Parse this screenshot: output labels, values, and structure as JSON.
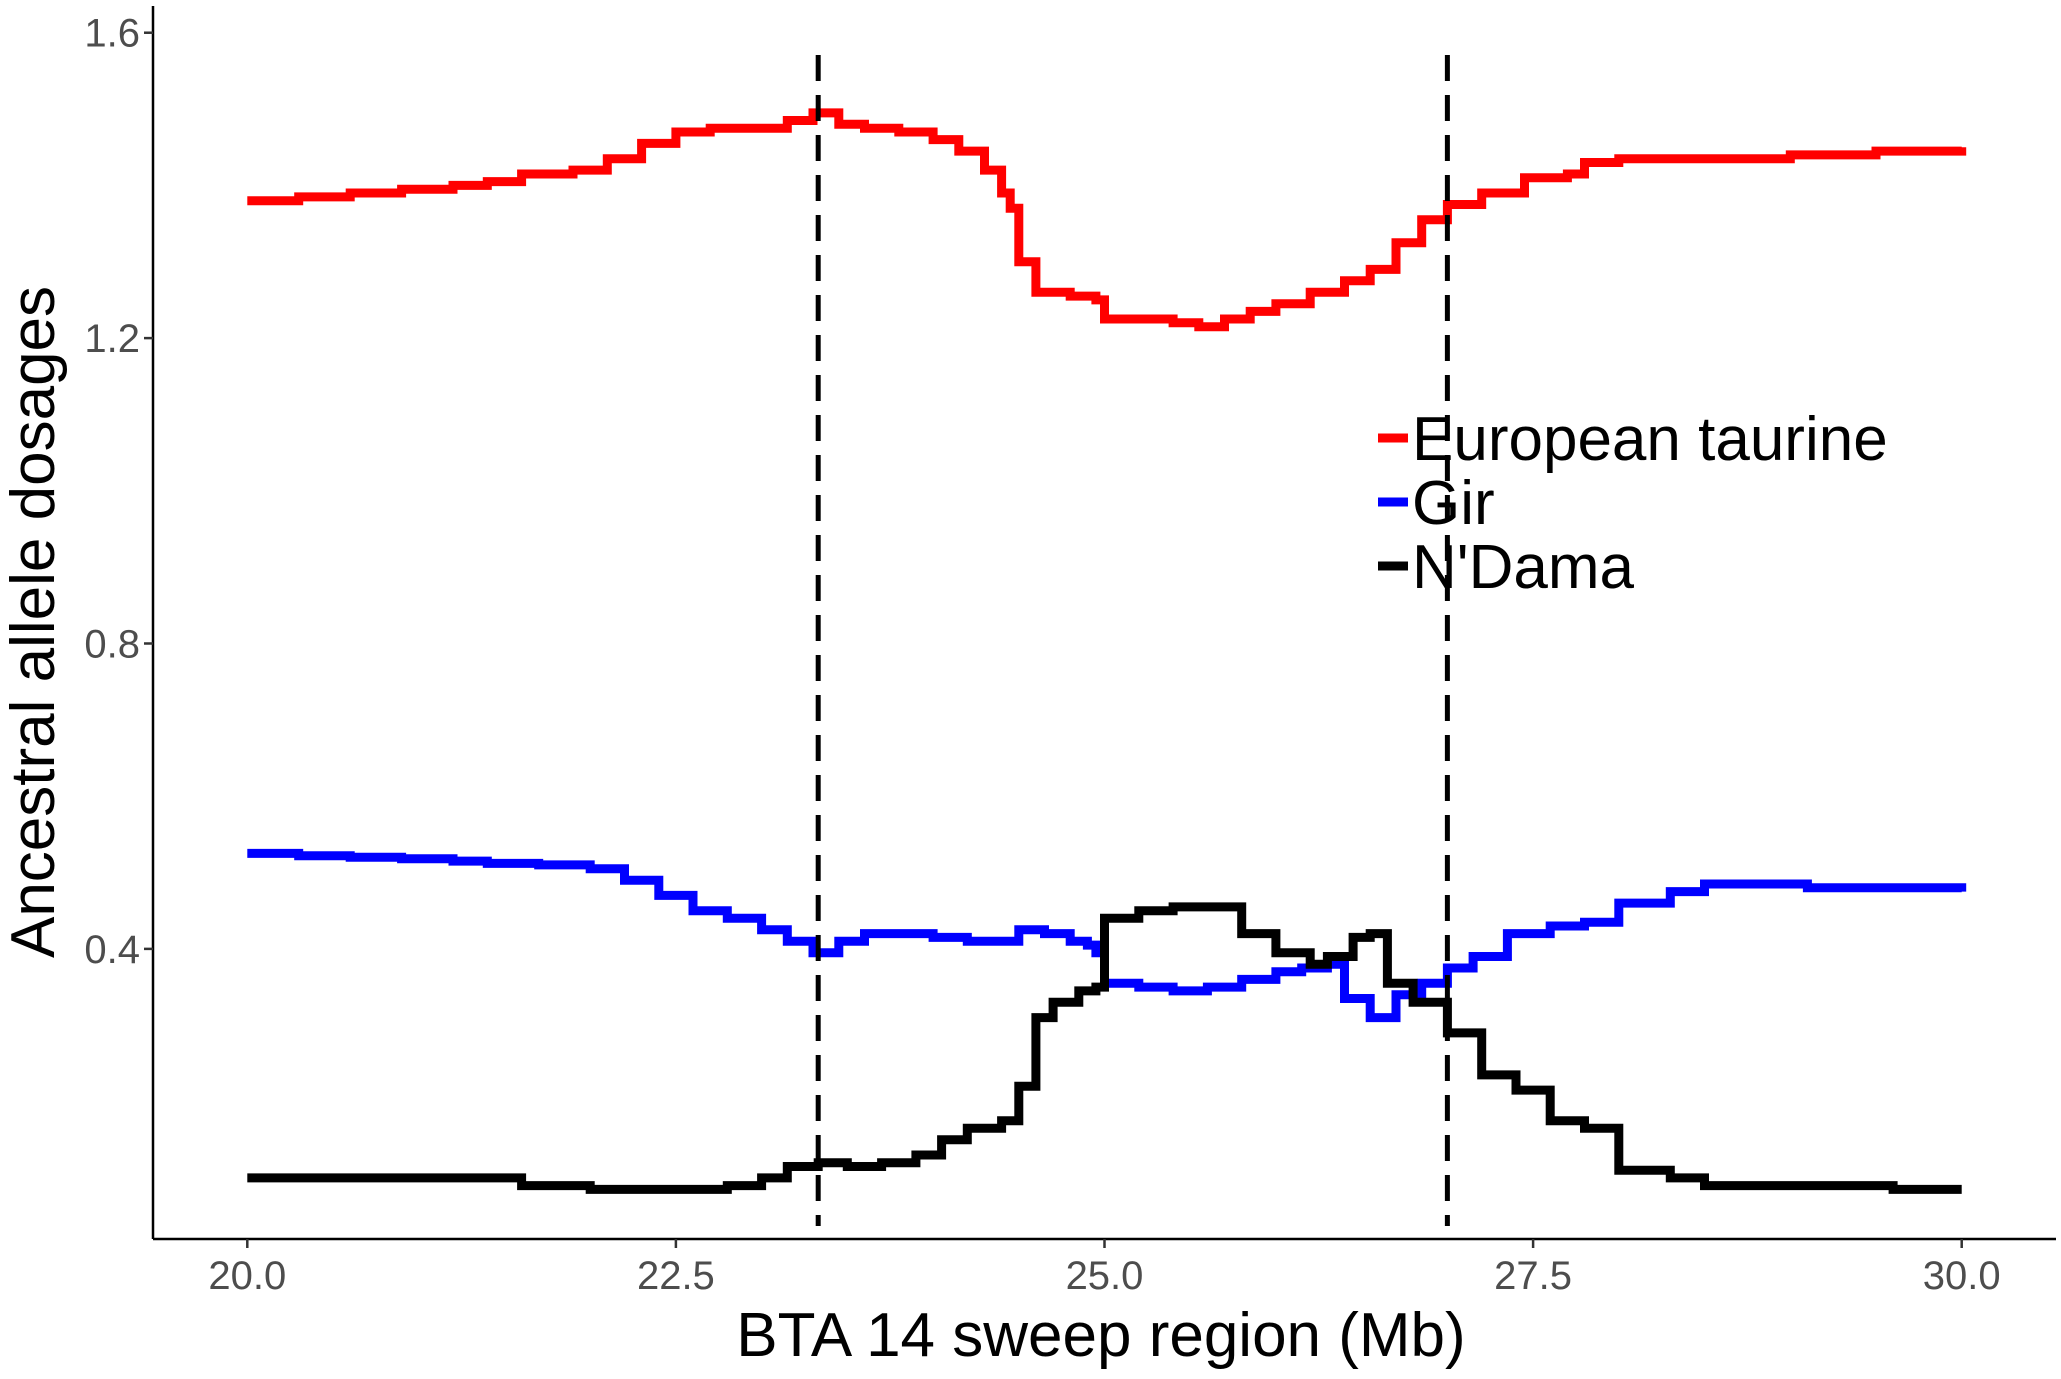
{
  "chart_data": {
    "type": "line",
    "title": "",
    "xlabel": "BTA 14 sweep region (Mb)",
    "ylabel": "Ancestral allele dosages",
    "xlim": [
      19.45,
      30.55
    ],
    "ylim": [
      0.02,
      1.635
    ],
    "x_ticks": [
      20.0,
      22.5,
      25.0,
      27.5,
      30.0
    ],
    "x_tick_labels": [
      "20.0",
      "22.5",
      "25.0",
      "27.5",
      "30.0"
    ],
    "y_ticks": [
      0.4,
      0.8,
      1.2,
      1.6
    ],
    "y_tick_labels": [
      "0.4",
      "0.8",
      "1.2",
      "1.6"
    ],
    "grid": false,
    "legend_position": "center-right",
    "vlines": [
      {
        "x": 23.33,
        "style": "dashed",
        "color": "#000000"
      },
      {
        "x": 27.0,
        "style": "dashed",
        "color": "#000000"
      }
    ],
    "series": [
      {
        "name": "European taurine",
        "color": "#ff0000",
        "x": [
          20.0,
          20.3,
          20.6,
          20.9,
          21.2,
          21.4,
          21.6,
          21.9,
          22.1,
          22.3,
          22.5,
          22.7,
          23.0,
          23.15,
          23.3,
          23.45,
          23.6,
          23.8,
          24.0,
          24.15,
          24.3,
          24.4,
          24.45,
          24.5,
          24.6,
          24.8,
          24.95,
          25.0,
          25.2,
          25.4,
          25.55,
          25.7,
          25.85,
          26.0,
          26.2,
          26.4,
          26.55,
          26.7,
          26.85,
          27.0,
          27.2,
          27.45,
          27.7,
          27.8,
          28.0,
          28.3,
          28.6,
          29.0,
          29.5,
          30.0
        ],
        "values": [
          1.38,
          1.385,
          1.39,
          1.395,
          1.4,
          1.405,
          1.415,
          1.42,
          1.435,
          1.455,
          1.47,
          1.475,
          1.475,
          1.485,
          1.495,
          1.48,
          1.475,
          1.47,
          1.46,
          1.445,
          1.42,
          1.39,
          1.37,
          1.3,
          1.26,
          1.255,
          1.25,
          1.225,
          1.225,
          1.22,
          1.215,
          1.225,
          1.235,
          1.245,
          1.26,
          1.275,
          1.29,
          1.325,
          1.355,
          1.375,
          1.39,
          1.41,
          1.415,
          1.43,
          1.435,
          1.435,
          1.435,
          1.44,
          1.445,
          1.45
        ]
      },
      {
        "name": "Gir",
        "color": "#0000ff",
        "x": [
          20.0,
          20.3,
          20.6,
          20.9,
          21.2,
          21.4,
          21.7,
          22.0,
          22.2,
          22.4,
          22.6,
          22.8,
          23.0,
          23.15,
          23.3,
          23.45,
          23.6,
          23.8,
          24.0,
          24.2,
          24.35,
          24.5,
          24.65,
          24.8,
          24.9,
          24.95,
          25.0,
          25.2,
          25.4,
          25.6,
          25.8,
          26.0,
          26.15,
          26.3,
          26.4,
          26.55,
          26.7,
          26.85,
          27.0,
          27.15,
          27.35,
          27.6,
          27.8,
          28.0,
          28.3,
          28.5,
          28.8,
          29.1,
          29.5,
          30.0
        ],
        "values": [
          0.525,
          0.522,
          0.52,
          0.518,
          0.515,
          0.512,
          0.51,
          0.505,
          0.49,
          0.47,
          0.45,
          0.44,
          0.425,
          0.41,
          0.395,
          0.41,
          0.42,
          0.42,
          0.415,
          0.41,
          0.41,
          0.425,
          0.42,
          0.41,
          0.405,
          0.395,
          0.355,
          0.35,
          0.345,
          0.35,
          0.36,
          0.37,
          0.375,
          0.38,
          0.335,
          0.31,
          0.34,
          0.355,
          0.375,
          0.39,
          0.42,
          0.43,
          0.435,
          0.46,
          0.475,
          0.485,
          0.485,
          0.48,
          0.48,
          0.475
        ]
      },
      {
        "name": "N'Dama",
        "color": "#000000",
        "x": [
          20.0,
          20.4,
          20.8,
          21.2,
          21.6,
          22.0,
          22.2,
          22.5,
          22.8,
          23.0,
          23.15,
          23.33,
          23.5,
          23.7,
          23.9,
          24.05,
          24.2,
          24.4,
          24.5,
          24.6,
          24.7,
          24.85,
          24.95,
          25.0,
          25.2,
          25.4,
          25.6,
          25.8,
          26.0,
          26.2,
          26.3,
          26.45,
          26.55,
          26.65,
          26.8,
          27.0,
          27.2,
          27.4,
          27.6,
          27.8,
          28.0,
          28.3,
          28.5,
          28.8,
          29.2,
          29.6,
          30.0
        ],
        "values": [
          0.1,
          0.1,
          0.1,
          0.1,
          0.09,
          0.085,
          0.085,
          0.085,
          0.09,
          0.1,
          0.115,
          0.12,
          0.115,
          0.12,
          0.13,
          0.15,
          0.165,
          0.175,
          0.22,
          0.31,
          0.33,
          0.345,
          0.35,
          0.44,
          0.45,
          0.455,
          0.455,
          0.42,
          0.395,
          0.38,
          0.39,
          0.415,
          0.42,
          0.355,
          0.33,
          0.29,
          0.235,
          0.215,
          0.175,
          0.165,
          0.11,
          0.1,
          0.09,
          0.09,
          0.09,
          0.085,
          0.085
        ]
      }
    ]
  }
}
